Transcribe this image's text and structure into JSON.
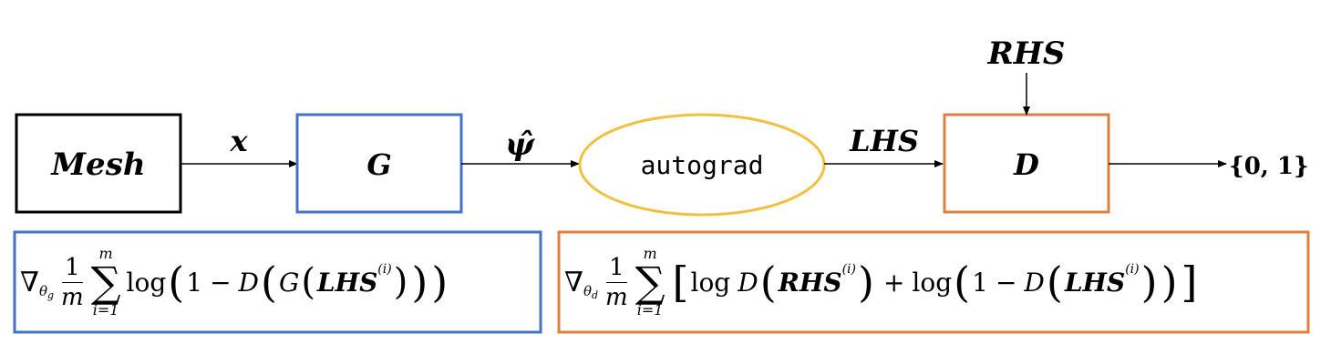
{
  "nodes": {
    "mesh": "Mesh",
    "generator": "G",
    "autograd": "autograd",
    "discriminator": "D"
  },
  "edges": {
    "x": "x",
    "psi_hat": "ψ̂",
    "lhs": "LHS",
    "rhs": "RHS",
    "output": "{0, 1}"
  },
  "formulas": {
    "generator_loss": {
      "nabla": "∇",
      "theta": "θ",
      "theta_sub": "g",
      "frac_num": "1",
      "frac_den": "m",
      "sum_top": "m",
      "sum_bottom": "i=1",
      "log": "log",
      "one": "1",
      "minus": "−",
      "D": "D",
      "G": "G",
      "LHS": "LHS",
      "sup": "(i)"
    },
    "discriminator_loss": {
      "nabla": "∇",
      "theta": "θ",
      "theta_sub": "d",
      "frac_num": "1",
      "frac_den": "m",
      "sum_top": "m",
      "sum_bottom": "i=1",
      "log": "log",
      "one": "1",
      "minus": "−",
      "plus": "+",
      "D": "D",
      "RHS": "RHS",
      "LHS": "LHS",
      "sup": "(i)"
    }
  },
  "colors": {
    "mesh_border": "#000000",
    "generator_border": "#4472C4",
    "autograd_border": "#F0C040",
    "discriminator_border": "#E08040",
    "generator_loss_border": "#4472C4",
    "discriminator_loss_border": "#E08040"
  }
}
